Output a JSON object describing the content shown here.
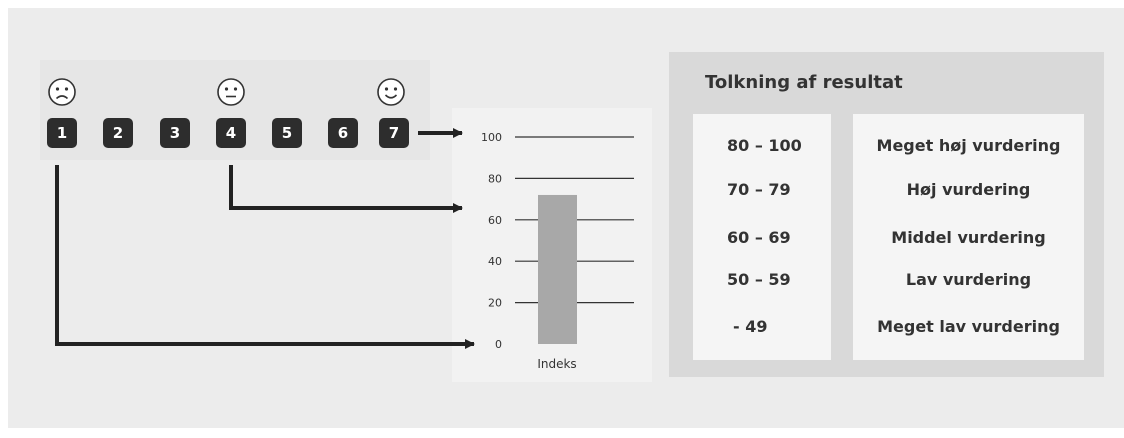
{
  "scale": {
    "numbers": [
      "1",
      "2",
      "3",
      "4",
      "5",
      "6",
      "7"
    ],
    "faces": [
      "sad-face-icon",
      "neutral-face-icon",
      "happy-face-icon"
    ]
  },
  "chart_data": {
    "type": "bar",
    "categories": [
      "Indeks"
    ],
    "values": [
      72
    ],
    "ylim": [
      0,
      100
    ],
    "yticks": [
      "0",
      "20",
      "40",
      "60",
      "80",
      "100"
    ],
    "grid": true,
    "bar_color": "#a8a8a8"
  },
  "interpretation": {
    "title": "Tolkning af resultat",
    "ranges": [
      "80 – 100",
      "70 – 79",
      "60 – 69",
      "50 – 59",
      "- 49"
    ],
    "labels": [
      "Meget høj vurdering",
      "Høj vurdering",
      "Middel vurdering",
      "Lav vurdering",
      "Meget lav vurdering"
    ]
  },
  "colors": {
    "badge": "#2d2d2d",
    "panel": "#d9d9d9",
    "cell": "#f5f5f5",
    "bar": "#a8a8a8"
  }
}
